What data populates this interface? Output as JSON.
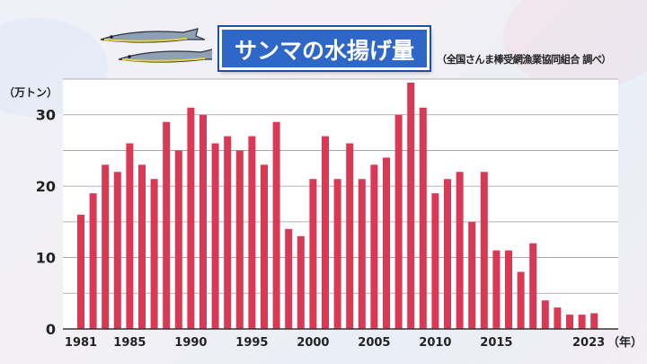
{
  "title": "サンマの水揚げ量",
  "source": "（全国さんま棒受網漁業協同組合 調べ）",
  "icons": {
    "fish": "saury-fish-icon"
  },
  "colors": {
    "bar": "#d83a56",
    "plot_bg": "#ffffff",
    "grid": "#9a9a9a",
    "title_bg": "#2f67c9"
  },
  "chart_data": {
    "type": "bar",
    "ylabel": "（万トン）",
    "xlabel": "（年）",
    "ylim": [
      0,
      35
    ],
    "yticks": [
      0,
      10,
      20,
      30
    ],
    "xtick_labels": [
      "1981",
      "1985",
      "1990",
      "1995",
      "2000",
      "2005",
      "2010",
      "2015",
      "2023"
    ],
    "categories": [
      1981,
      1982,
      1983,
      1984,
      1985,
      1986,
      1987,
      1988,
      1989,
      1990,
      1991,
      1992,
      1993,
      1994,
      1995,
      1996,
      1997,
      1998,
      1999,
      2000,
      2001,
      2002,
      2003,
      2004,
      2005,
      2006,
      2007,
      2008,
      2009,
      2010,
      2011,
      2012,
      2013,
      2014,
      2015,
      2016,
      2017,
      2018,
      2019,
      2020,
      2021,
      2022,
      2023
    ],
    "values": [
      16,
      19,
      23,
      22,
      26,
      23,
      21,
      29,
      25,
      31,
      30,
      26,
      27,
      25,
      27,
      23,
      29,
      14,
      13,
      21,
      27,
      21,
      26,
      21,
      23,
      24,
      30,
      34.5,
      31,
      19,
      21,
      22,
      15,
      22,
      11,
      11,
      8,
      12,
      4,
      3,
      2,
      2,
      2.2
    ],
    "grid": true
  }
}
